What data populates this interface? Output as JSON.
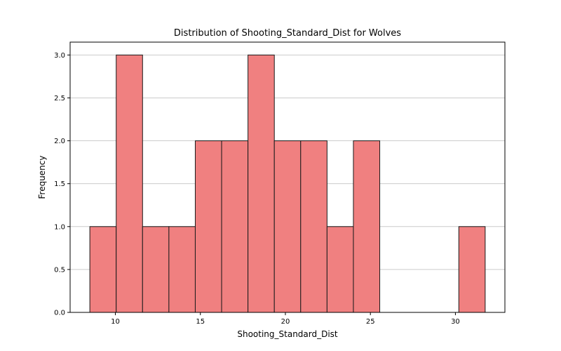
{
  "chart_data": {
    "type": "bar",
    "title": "Distribution of Shooting_Standard_Dist for Wolves",
    "xlabel": "Shooting_Standard_Dist",
    "ylabel": "Frequency",
    "bin_edges": [
      8.5,
      10.05,
      11.6,
      13.15,
      14.7,
      16.25,
      17.8,
      19.35,
      20.9,
      22.45,
      24.0,
      25.55,
      27.1,
      28.65,
      30.2,
      31.75
    ],
    "values": [
      1,
      3,
      1,
      1,
      2,
      2,
      3,
      2,
      2,
      1,
      2,
      0,
      0,
      0,
      1
    ],
    "xlim": [
      7.34,
      32.91
    ],
    "ylim": [
      0,
      3.15
    ],
    "xticks": [
      10,
      15,
      20,
      25,
      30
    ],
    "yticks": [
      0.0,
      0.5,
      1.0,
      1.5,
      2.0,
      2.5,
      3.0
    ],
    "ytick_labels": [
      "0.0",
      "0.5",
      "1.0",
      "1.5",
      "2.0",
      "2.5",
      "3.0"
    ],
    "grid": "y",
    "colors": {
      "bar_fill": "#f08080",
      "bar_edge": "#1a1a1a",
      "grid": "#cccccc"
    }
  }
}
